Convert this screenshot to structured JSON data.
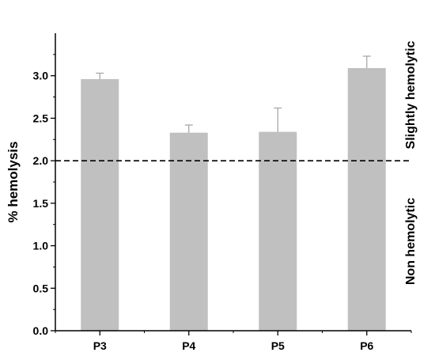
{
  "chart_data": {
    "type": "bar",
    "title": "",
    "xlabel": "",
    "ylabel": "% hemolysis",
    "ylim": [
      0,
      3.5
    ],
    "yticks": [
      "0.0",
      "0.5",
      "1.0",
      "1.5",
      "2.0",
      "2.5",
      "3.0"
    ],
    "categories": [
      "P3",
      "P4",
      "P5",
      "P6"
    ],
    "values": [
      2.96,
      2.33,
      2.34,
      3.09
    ],
    "errors": [
      0.07,
      0.09,
      0.28,
      0.14
    ],
    "bar_color": "#c0c0c0",
    "threshold": 2.0,
    "threshold_style": "dashed",
    "grid": false,
    "annotations": {
      "upper": "Slightly hemolytic",
      "lower": "Non hemolytic"
    }
  }
}
